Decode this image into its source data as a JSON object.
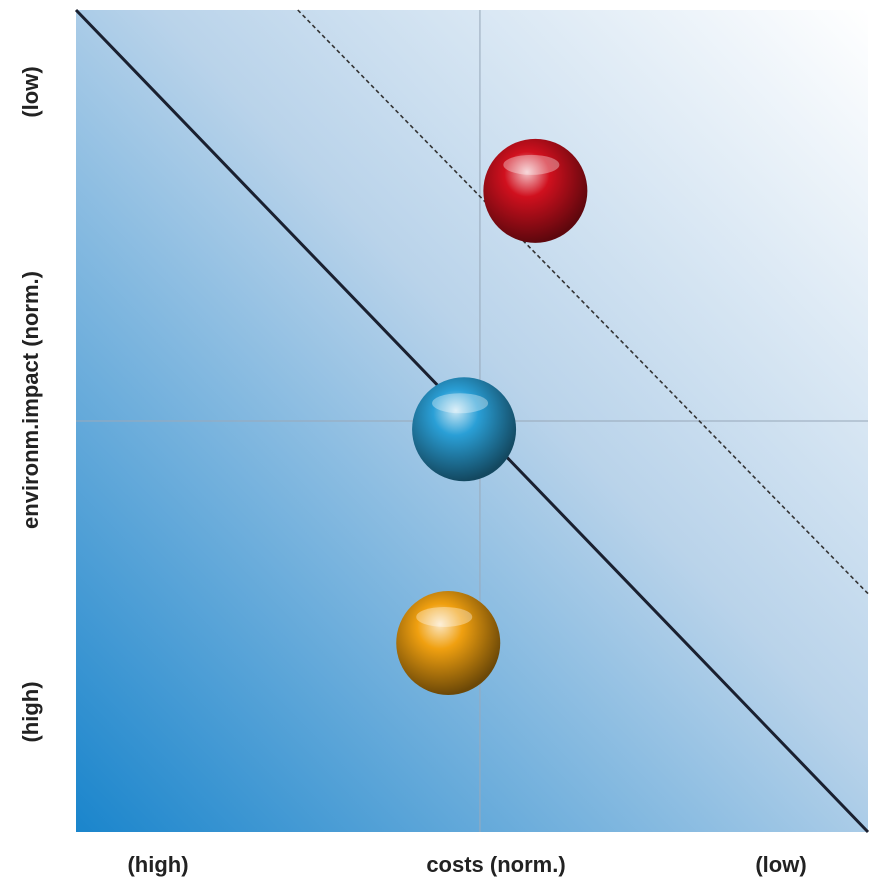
{
  "chart_data": {
    "type": "scatter",
    "title": "",
    "xlabel": "costs (norm.)",
    "ylabel": "environm.impact (norm.)",
    "x_low_end_label": "(high)",
    "x_high_end_label": "(low)",
    "y_low_end_label": "(high)",
    "y_high_end_label": "(low)",
    "xlim": [
      0,
      1
    ],
    "ylim": [
      0,
      1
    ],
    "grid": false,
    "reference_x": 0.51,
    "reference_y": 0.5,
    "points": [
      {
        "x": 0.58,
        "y": 0.78,
        "color": "#d0101e"
      },
      {
        "x": 0.49,
        "y": 0.49,
        "color": "#2a9fd6"
      },
      {
        "x": 0.47,
        "y": 0.23,
        "color": "#f0a010"
      }
    ],
    "lines": [
      {
        "style": "solid",
        "color": "#1a2030",
        "x1": 0,
        "y1": 1,
        "x2": 1,
        "y2": 0
      },
      {
        "style": "dashed",
        "color": "#333333",
        "x1": 0.28,
        "y1": 1,
        "x2": 1,
        "y2": 0.29
      }
    ],
    "background_gradient": {
      "from": "#1a85cc",
      "to": "#ffffff"
    }
  }
}
